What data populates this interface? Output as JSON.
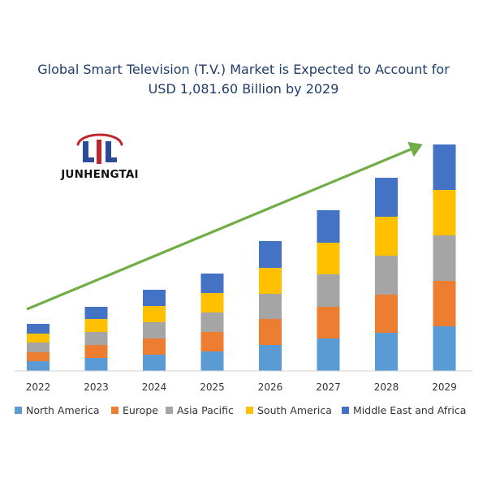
{
  "title": {
    "line1": "Global Smart Television (T.V.) Market is Expected to Account for",
    "line2": "USD 1,081.60 Billion by 2029"
  },
  "logo": {
    "text": "JUNHENGTAI",
    "colors": {
      "red": "#c0262d",
      "blue": "#2a4a9a"
    }
  },
  "chart_data": {
    "type": "bar",
    "stacked": true,
    "categories": [
      "2022",
      "2023",
      "2024",
      "2025",
      "2026",
      "2027",
      "2028",
      "2029"
    ],
    "series": [
      {
        "name": "North America",
        "color": "#5b9bd5",
        "values": [
          12,
          16,
          20,
          24,
          32,
          40,
          47,
          55
        ]
      },
      {
        "name": "Europe",
        "color": "#ed7d31",
        "values": [
          11,
          16,
          20,
          24,
          32,
          39,
          47,
          56
        ]
      },
      {
        "name": "Asia Pacific",
        "color": "#a5a5a5",
        "values": [
          12,
          16,
          20,
          24,
          31,
          40,
          48,
          56
        ]
      },
      {
        "name": "South America",
        "color": "#ffc000",
        "values": [
          11,
          16,
          20,
          24,
          32,
          39,
          48,
          56
        ]
      },
      {
        "name": "Middle East and Africa",
        "color": "#4472c4",
        "values": [
          12,
          15,
          20,
          24,
          33,
          40,
          48,
          56
        ]
      }
    ],
    "trend_arrow_color": "#70ad47",
    "grid": false,
    "legend_position": "bottom"
  }
}
